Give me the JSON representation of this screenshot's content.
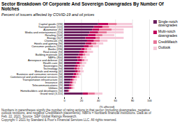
{
  "chart_data": {
    "type": "bar",
    "orientation": "horizontal",
    "stacked": true,
    "title": "Sector Breakdown Of Corporate And Sovereign Downgrades By Number Of\nNotches",
    "subtitle": "Percent of issuers affected by COVID-19 and oil prices",
    "categories": [
      "Capital goods (196)",
      "Transportation (115)",
      "Automotive (92)",
      "Media and entertainment (124)",
      "Retailing (144)",
      "Energy (107)",
      "Chemicals (76)",
      "Hotels and gaming (96)",
      "Consumer products (135)",
      "Banks (296)",
      "Real estate (94)",
      "Building materials (43)",
      "NBFIs (300)",
      "Aerospace and defense (24)",
      "Health care (66)",
      "Sovereigns (90)",
      "Technology (94)",
      "Metals and mining (42)",
      "Business and consumer services (56)",
      "Commercial and professional services (33)",
      "Transportation infrastructure (15)",
      "Insurance (48)",
      "Telecommunications (29)",
      "Utilities (34)",
      "Homebuilders and developers (10)",
      "Grand total (3,115)"
    ],
    "series": [
      {
        "name": "Single-notch\ndowngrades",
        "color": "#6b1f5e",
        "values": [
          40,
          35,
          33,
          30,
          28,
          25,
          27,
          25,
          23,
          20,
          18,
          17,
          15,
          16,
          14,
          13,
          12,
          13,
          11,
          10,
          8,
          7,
          6,
          6,
          4,
          22
        ]
      },
      {
        "name": "Multi-notch\ndowngrades",
        "color": "#c0005a",
        "values": [
          12,
          10,
          8,
          10,
          9,
          12,
          8,
          7,
          6,
          4,
          5,
          5,
          4,
          5,
          4,
          3,
          3,
          3,
          3,
          3,
          2,
          2,
          2,
          2,
          1,
          6
        ]
      },
      {
        "name": "CreditWatch",
        "color": "#e87699",
        "values": [
          10,
          8,
          15,
          10,
          8,
          5,
          7,
          6,
          5,
          3,
          4,
          3,
          3,
          3,
          3,
          3,
          3,
          3,
          3,
          2,
          2,
          2,
          2,
          2,
          1,
          8
        ]
      },
      {
        "name": "Outlook",
        "color": "#f5c8d8",
        "values": [
          18,
          28,
          14,
          20,
          14,
          28,
          9,
          8,
          7,
          5,
          7,
          5,
          4,
          4,
          5,
          5,
          4,
          4,
          3,
          3,
          3,
          3,
          2,
          2,
          1,
          9
        ]
      }
    ],
    "xlabel": "(% affected)",
    "xlim": [
      0,
      100
    ],
    "xticks": [
      0,
      20,
      40,
      60,
      80,
      100
    ],
    "grid": true,
    "legend": "right",
    "footnotes": [
      "Numbers in parentheses signify the number of rating actions in that sector (including downgrades, negative",
      "outlook revisions, and negative CreditWatch placements). NBFIs = Nonbank financial institutions. Data as of",
      "Feb. 22, 2021. Source: S&P Global Ratings Research.",
      "Copyright © 2021 by Standard & Poor's Financial Services LLC. All rights reserved."
    ]
  }
}
